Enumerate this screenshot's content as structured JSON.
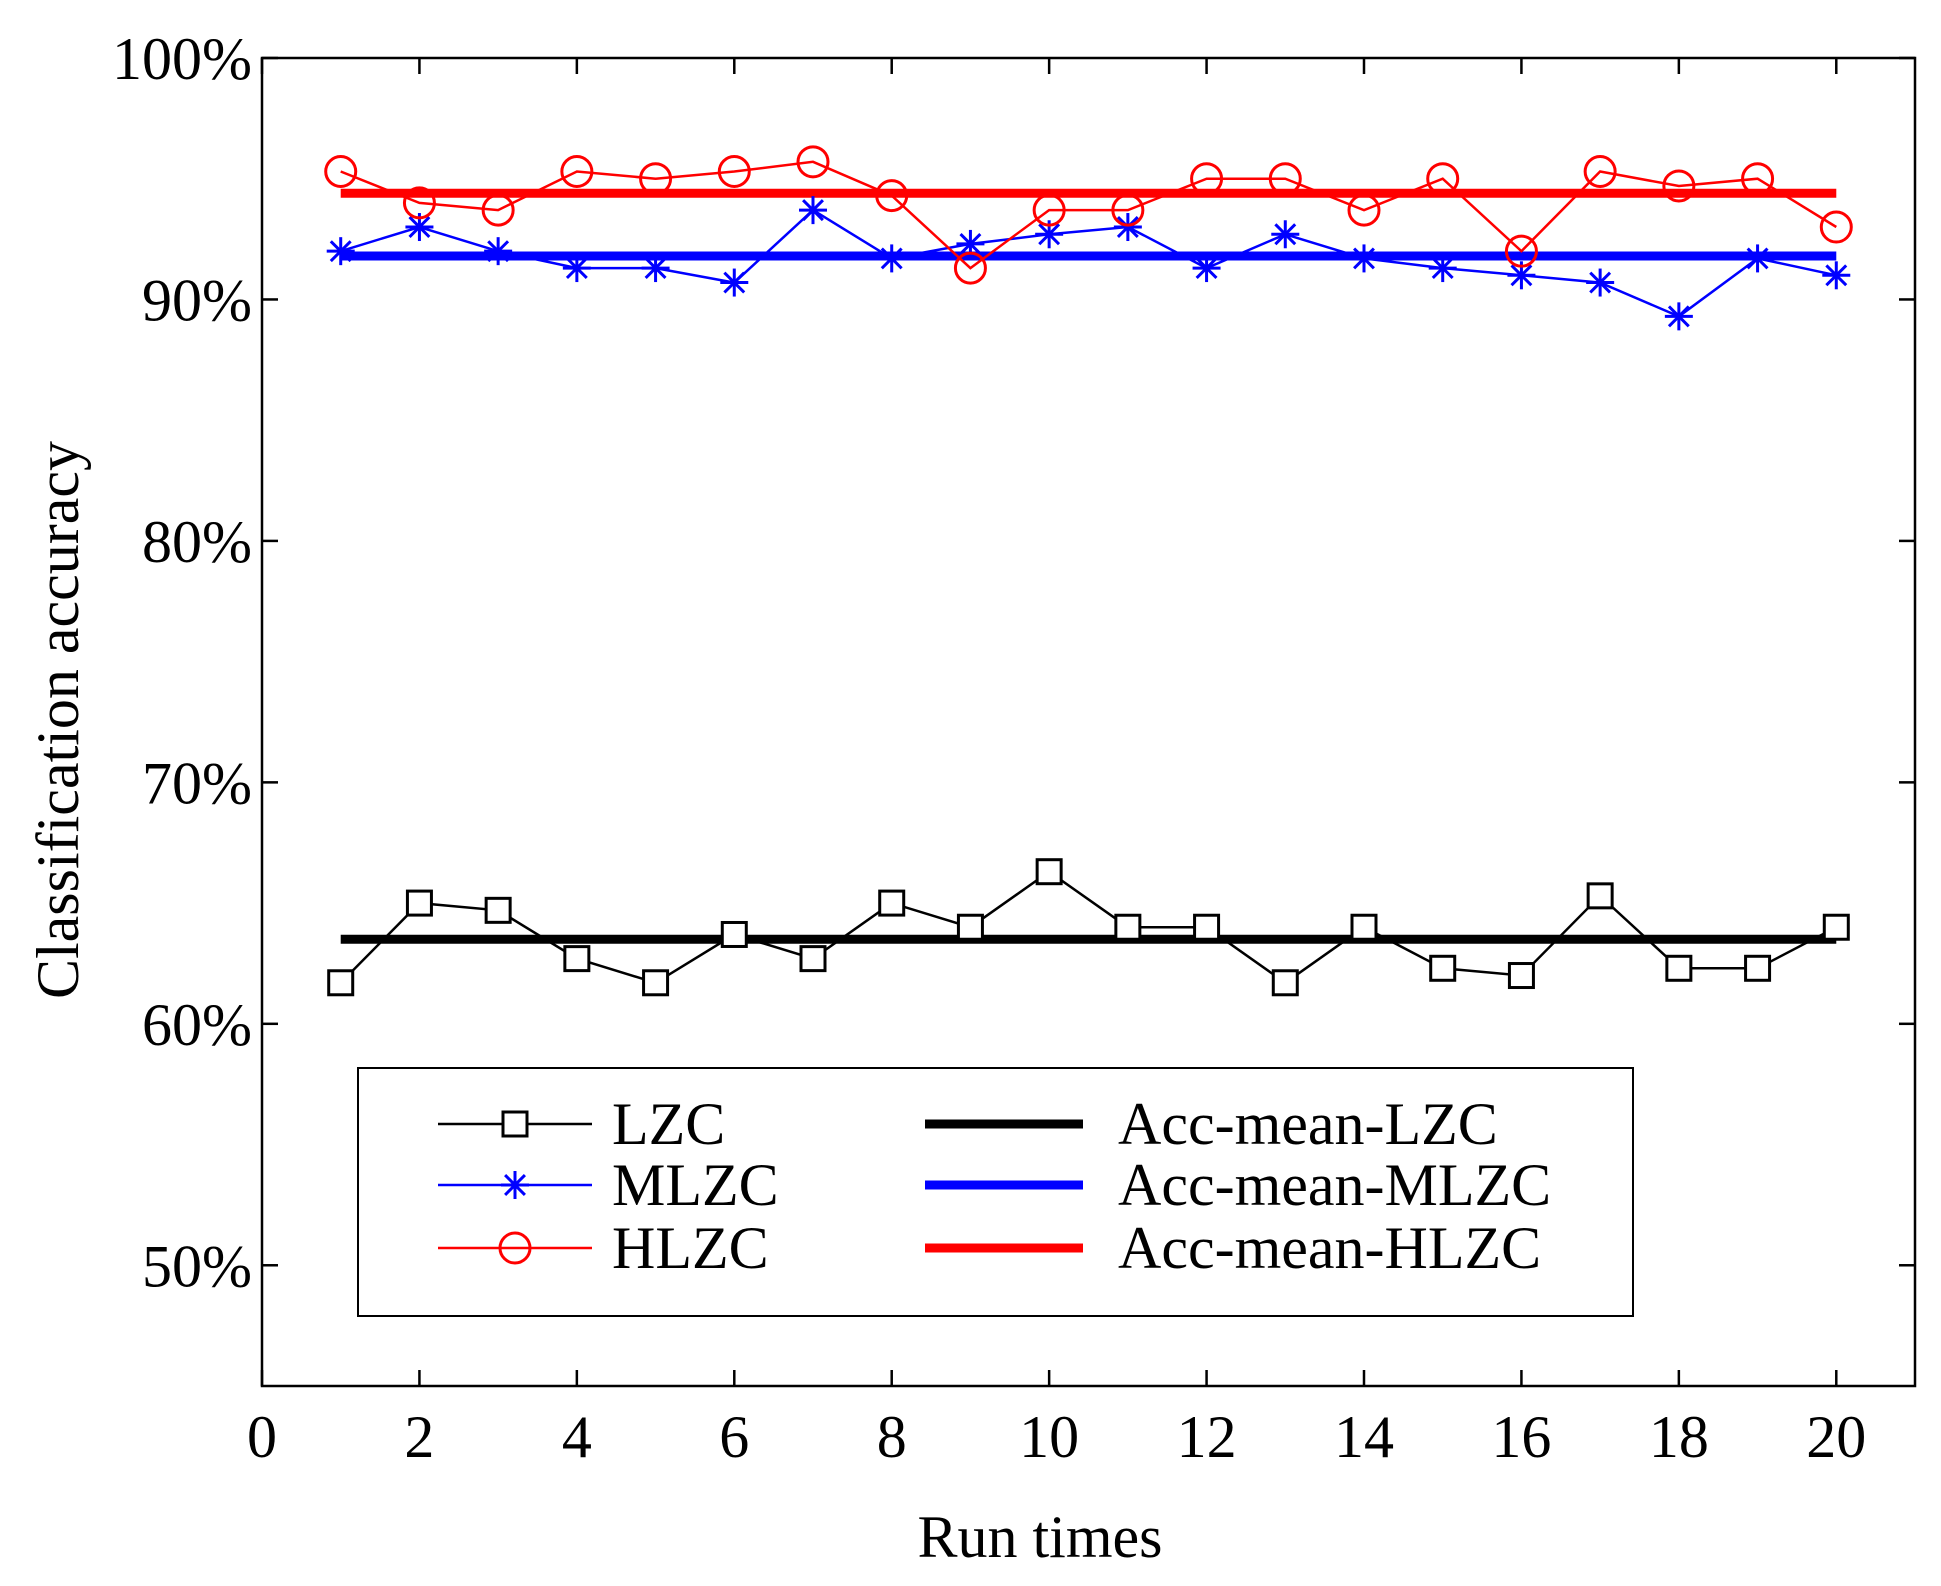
{
  "chart_data": {
    "type": "line",
    "title": "",
    "xlabel": "Run times",
    "ylabel": "Classification accuracy",
    "xlim": [
      0,
      21
    ],
    "ylim": [
      45,
      100
    ],
    "x_ticks": [
      0,
      2,
      4,
      6,
      8,
      10,
      12,
      14,
      16,
      18,
      20
    ],
    "y_ticks": [
      50,
      60,
      70,
      80,
      90,
      100
    ],
    "y_tick_labels": [
      "50%",
      "60%",
      "70%",
      "80%",
      "90%",
      "100%"
    ],
    "grid": false,
    "legend_position": "lower-center",
    "x": [
      1,
      2,
      3,
      4,
      5,
      6,
      7,
      8,
      9,
      10,
      11,
      12,
      13,
      14,
      15,
      16,
      17,
      18,
      19,
      20
    ],
    "series": [
      {
        "name": "LZC",
        "color": "#000000",
        "marker": "square",
        "values": [
          61.7,
          65.0,
          64.7,
          62.7,
          61.7,
          63.7,
          62.7,
          65.0,
          64.0,
          66.3,
          64.0,
          64.0,
          61.7,
          64.0,
          62.3,
          62.0,
          65.3,
          62.3,
          62.3,
          64.0
        ]
      },
      {
        "name": "MLZC",
        "color": "#0000ff",
        "marker": "asterisk",
        "values": [
          92.0,
          93.0,
          92.0,
          91.3,
          91.3,
          90.7,
          93.7,
          91.7,
          92.3,
          92.7,
          93.0,
          91.3,
          92.7,
          91.7,
          91.3,
          91.0,
          90.7,
          89.3,
          91.7,
          91.0
        ]
      },
      {
        "name": "HLZC",
        "color": "#ff0000",
        "marker": "circle",
        "values": [
          95.3,
          94.0,
          93.7,
          95.3,
          95.0,
          95.3,
          95.7,
          94.3,
          91.3,
          93.7,
          93.7,
          95.0,
          95.0,
          93.7,
          95.0,
          92.0,
          95.3,
          94.7,
          95.0,
          93.0
        ]
      }
    ],
    "mean_lines": [
      {
        "name": "Acc-mean-LZC",
        "color": "#000000",
        "value": 63.5,
        "x_range": [
          1,
          20
        ]
      },
      {
        "name": "Acc-mean-MLZC",
        "color": "#0000ff",
        "value": 91.8,
        "x_range": [
          1,
          20
        ]
      },
      {
        "name": "Acc-mean-HLZC",
        "color": "#ff0000",
        "value": 94.4,
        "x_range": [
          1,
          20
        ]
      }
    ]
  }
}
